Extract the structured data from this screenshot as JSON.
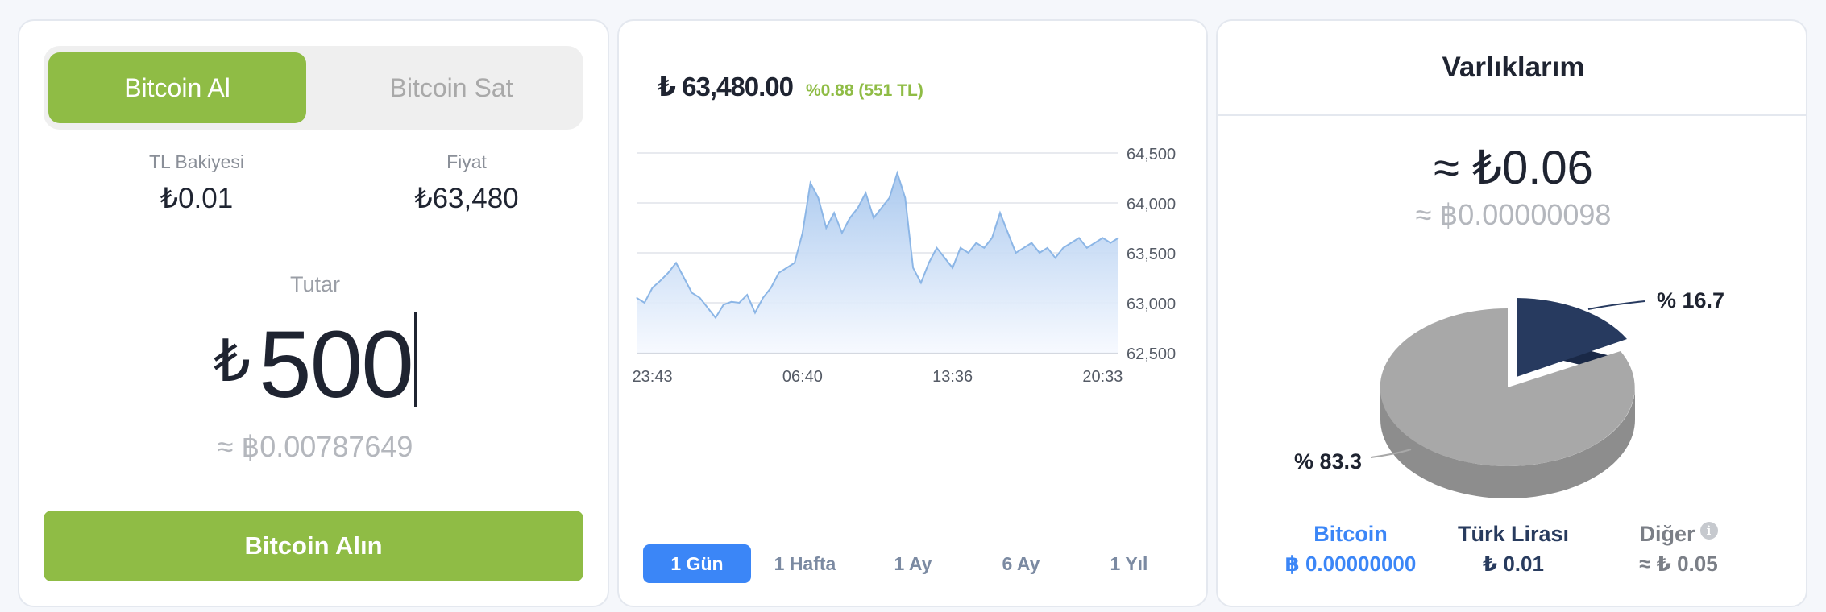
{
  "trade": {
    "tab_buy": "Bitcoin Al",
    "tab_sell": "Bitcoin Sat",
    "balance_label": "TL Bakiyesi",
    "balance_value": "₺0.01",
    "price_label": "Fiyat",
    "price_value": "₺63,480",
    "amount_label": "Tutar",
    "amount_currency": "₺",
    "amount_value": "500",
    "amount_btc": "≈ ฿0.00787649",
    "buy_button": "Bitcoin Alın"
  },
  "chart": {
    "price": "₺ 63,480.00",
    "change": "%0.88 (551 TL)",
    "ranges": [
      "1 Gün",
      "1 Hafta",
      "1 Ay",
      "6 Ay",
      "1 Yıl"
    ],
    "active_range": "1 Gün",
    "colors": {
      "line": "#8cb6e6",
      "fill_top": "#a7c7ee",
      "fill_bottom": "#f6f9ff",
      "active": "#3b86f7"
    }
  },
  "chart_data": {
    "type": "area",
    "x_ticks": [
      "23:43",
      "06:40",
      "13:36",
      "20:33"
    ],
    "y_ticks": [
      "64,500",
      "64,000",
      "63,500",
      "63,000",
      "62,500"
    ],
    "ylim": [
      62500,
      64500
    ],
    "grid": true,
    "y_axis_side": "right",
    "x": [
      "22:57",
      "23:20",
      "23:43",
      "00:06",
      "00:29",
      "00:51",
      "01:14",
      "01:37",
      "02:00",
      "02:23",
      "02:46",
      "03:09",
      "03:31",
      "03:54",
      "04:17",
      "04:40",
      "05:03",
      "05:26",
      "05:49",
      "06:11",
      "06:34",
      "06:40",
      "06:57",
      "07:20",
      "07:43",
      "08:06",
      "08:29",
      "08:51",
      "09:14",
      "09:37",
      "10:00",
      "10:23",
      "10:46",
      "11:09",
      "11:31",
      "11:54",
      "12:17",
      "12:40",
      "13:03",
      "13:26",
      "13:36",
      "13:49",
      "14:11",
      "14:34",
      "14:57",
      "15:20",
      "15:43",
      "16:06",
      "16:29",
      "16:51",
      "17:14",
      "17:37",
      "18:00",
      "18:23",
      "18:46",
      "19:09",
      "19:31",
      "19:54",
      "20:17",
      "20:33",
      "20:40",
      "21:03"
    ],
    "values": [
      63050,
      63000,
      63150,
      63220,
      63300,
      63400,
      63250,
      63100,
      63050,
      62950,
      62850,
      62980,
      63010,
      63000,
      63080,
      62900,
      63050,
      63150,
      63300,
      63350,
      63400,
      63700,
      64200,
      64050,
      63750,
      63900,
      63700,
      63850,
      63950,
      64100,
      63850,
      63950,
      64050,
      64300,
      64050,
      63350,
      63200,
      63400,
      63550,
      63450,
      63350,
      63550,
      63500,
      63600,
      63550,
      63650,
      63900,
      63700,
      63500,
      63550,
      63600,
      63500,
      63550,
      63450,
      63550,
      63600,
      63650,
      63550,
      63600,
      63650,
      63600,
      63650
    ]
  },
  "assets": {
    "title": "Varlıklarım",
    "total_tl": "≈ ₺0.06",
    "total_btc": "≈ ฿0.00000098",
    "label_small": "% 16.7",
    "label_large": "% 83.3",
    "legend": [
      {
        "name": "Bitcoin",
        "amount": "฿ 0.00000000"
      },
      {
        "name": "Türk Lirası",
        "amount": "₺ 0.01"
      },
      {
        "name": "Diğer",
        "amount": "≈ ₺ 0.05",
        "icon": "info-icon"
      }
    ],
    "colors": {
      "bitcoin": "#3b86f7",
      "tl": "#273a5f",
      "other": "#a8a8a8"
    }
  },
  "pie_data": {
    "type": "pie",
    "slices": [
      {
        "label": "% 16.7",
        "value": 16.7,
        "color": "#273a5f"
      },
      {
        "label": "% 83.3",
        "value": 83.3,
        "color": "#a8a8a8"
      }
    ]
  }
}
